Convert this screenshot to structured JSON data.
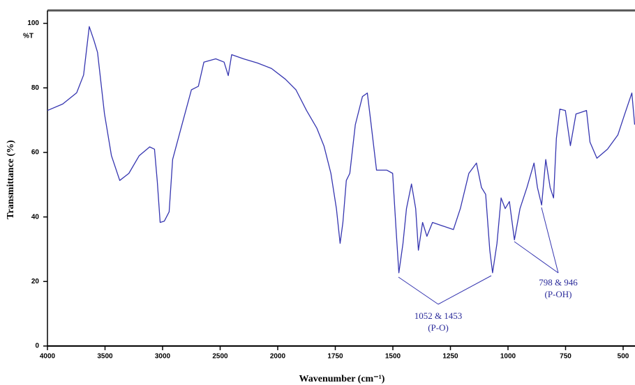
{
  "chart_data": {
    "type": "line",
    "y_unit_label": "%T",
    "xlabel": "Wavenumber (cm⁻¹)",
    "ylabel": "Transmittance (%)",
    "color": "#3535b0",
    "xlim": [
      4000,
      450
    ],
    "ylim": [
      0,
      104
    ],
    "xticks": [
      4000,
      3500,
      3000,
      2500,
      2000,
      1750,
      1500,
      1250,
      1000,
      750,
      500
    ],
    "yticks": [
      0,
      20,
      40,
      60,
      80,
      100
    ],
    "x": [
      4000,
      3867,
      3746,
      3686,
      3637,
      3595,
      3565,
      3505,
      3444,
      3372,
      3293,
      3203,
      3112,
      3070,
      3046,
      3021,
      2985,
      2943,
      2913,
      2840,
      2750,
      2689,
      2641,
      2538,
      2466,
      2430,
      2400,
      2297,
      2176,
      2054,
      1967,
      1921,
      1875,
      1830,
      1799,
      1769,
      1745,
      1729,
      1717,
      1702,
      1687,
      1663,
      1632,
      1611,
      1596,
      1571,
      1526,
      1501,
      1486,
      1474,
      1456,
      1441,
      1419,
      1401,
      1389,
      1371,
      1352,
      1328,
      1283,
      1237,
      1207,
      1170,
      1137,
      1115,
      1097,
      1079,
      1067,
      1048,
      1030,
      1012,
      994,
      972,
      948,
      918,
      887,
      872,
      854,
      836,
      817,
      802,
      790,
      775,
      751,
      729,
      705,
      659,
      644,
      614,
      568,
      523,
      493,
      462,
      450
    ],
    "values": [
      73,
      75,
      78.5,
      84,
      99,
      94.6,
      91,
      72,
      59,
      51.3,
      53.5,
      59,
      61.7,
      61,
      51,
      38.3,
      38.7,
      41.6,
      57.8,
      67.5,
      79.4,
      80.5,
      88,
      89,
      88,
      83.8,
      90.3,
      89,
      87.7,
      86,
      82.7,
      79.4,
      73,
      67.5,
      62,
      53.5,
      42.6,
      31.8,
      38.3,
      51.3,
      53.5,
      68.6,
      77.3,
      78.4,
      69.7,
      54.5,
      54.5,
      53.5,
      36.1,
      22.7,
      31.8,
      42.6,
      50.2,
      42.6,
      29.7,
      38.3,
      34,
      38.3,
      37.2,
      36.1,
      42.6,
      53.5,
      56.7,
      49.1,
      47,
      29.7,
      22.7,
      31.8,
      45.9,
      42.6,
      44.8,
      32.9,
      42.6,
      49.1,
      56.7,
      49.1,
      43.7,
      57.8,
      49.1,
      45.9,
      64.3,
      73.4,
      73,
      62.1,
      71.9,
      73,
      63.2,
      58.2,
      61,
      65.4,
      71.9,
      78.4,
      68.6
    ],
    "annotations": [
      {
        "label": "1052 & 1453",
        "sublabel": "(P-O)"
      },
      {
        "label": "798 & 946",
        "sublabel": "(P-OH)"
      }
    ]
  }
}
